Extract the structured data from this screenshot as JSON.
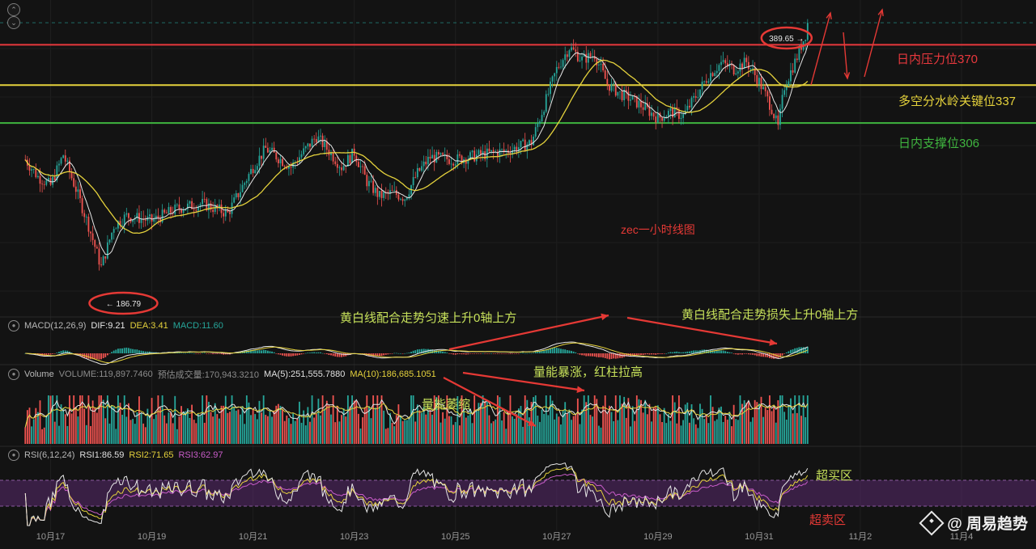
{
  "chart_data": [
    {
      "type": "candlestick",
      "pane": "price",
      "ylim": [
        150,
        400
      ],
      "x_start": "10月16",
      "x_end": "11月4",
      "x_ticks": [
        "10月17",
        "10月19",
        "10月21",
        "10月23",
        "10月25",
        "10月27",
        "10月29",
        "10月31",
        "11月2",
        "11月4"
      ],
      "series": [
        {
          "x": "10月16 12:00",
          "y": 276
        },
        {
          "x": "10月16 18:00",
          "y": 262
        },
        {
          "x": "10月17 00:00",
          "y": 255
        },
        {
          "x": "10月17 06:00",
          "y": 280
        },
        {
          "x": "10月17 12:00",
          "y": 252
        },
        {
          "x": "10月17 18:00",
          "y": 222
        },
        {
          "x": "10月18 00:00",
          "y": 188
        },
        {
          "x": "10月18 06:00",
          "y": 222
        },
        {
          "x": "10月18 12:00",
          "y": 230
        },
        {
          "x": "10月19 00:00",
          "y": 226
        },
        {
          "x": "10月19 12:00",
          "y": 236
        },
        {
          "x": "10月20 00:00",
          "y": 240
        },
        {
          "x": "10月20 12:00",
          "y": 232
        },
        {
          "x": "10月21 00:00",
          "y": 270
        },
        {
          "x": "10月21 06:00",
          "y": 285
        },
        {
          "x": "10月21 18:00",
          "y": 270
        },
        {
          "x": "10月22 06:00",
          "y": 295
        },
        {
          "x": "10月22 12:00",
          "y": 283
        },
        {
          "x": "10月22 18:00",
          "y": 270
        },
        {
          "x": "10月23 00:00",
          "y": 282
        },
        {
          "x": "10月23 06:00",
          "y": 258
        },
        {
          "x": "10月23 12:00",
          "y": 246
        },
        {
          "x": "10月23 18:00",
          "y": 249
        },
        {
          "x": "10月24 00:00",
          "y": 245
        },
        {
          "x": "10月24 06:00",
          "y": 265
        },
        {
          "x": "10月24 12:00",
          "y": 278
        },
        {
          "x": "10月25 00:00",
          "y": 276
        },
        {
          "x": "10月25 12:00",
          "y": 280
        },
        {
          "x": "10月26 00:00",
          "y": 283
        },
        {
          "x": "10月26 12:00",
          "y": 290
        },
        {
          "x": "10月26 18:00",
          "y": 320
        },
        {
          "x": "10月27 00:00",
          "y": 350
        },
        {
          "x": "10月27 06:00",
          "y": 368
        },
        {
          "x": "10月27 12:00",
          "y": 358
        },
        {
          "x": "10月27 18:00",
          "y": 362
        },
        {
          "x": "10月28 00:00",
          "y": 338
        },
        {
          "x": "10月28 06:00",
          "y": 330
        },
        {
          "x": "10月28 12:00",
          "y": 325
        },
        {
          "x": "10月28 18:00",
          "y": 318
        },
        {
          "x": "10月29 00:00",
          "y": 310
        },
        {
          "x": "10月29 06:00",
          "y": 315
        },
        {
          "x": "10月29 12:00",
          "y": 312
        },
        {
          "x": "10月29 18:00",
          "y": 328
        },
        {
          "x": "10月30 00:00",
          "y": 345
        },
        {
          "x": "10月30 06:00",
          "y": 355
        },
        {
          "x": "10月30 12:00",
          "y": 350
        },
        {
          "x": "10月30 18:00",
          "y": 356
        },
        {
          "x": "10月31 00:00",
          "y": 340
        },
        {
          "x": "10月31 06:00",
          "y": 318
        },
        {
          "x": "10月31 09:00",
          "y": 302
        },
        {
          "x": "10月31 12:00",
          "y": 336
        },
        {
          "x": "10月31 18:00",
          "y": 360
        },
        {
          "x": "11月1 00:00",
          "y": 388
        }
      ],
      "levels": [
        {
          "label": "日内压力位370",
          "value": 370,
          "color": "#e8383d"
        },
        {
          "label": "多空分水岭关键位337",
          "value": 337,
          "color": "#e5d23c"
        },
        {
          "label": "日内支撑位306",
          "value": 306,
          "color": "#3fb53f"
        }
      ],
      "price_tags": {
        "high": "389.65 →",
        "low": "← 186.79"
      },
      "caption": "zec一小时线图"
    },
    {
      "type": "bar",
      "pane": "macd",
      "indicator": "MACD(12,26,9)",
      "dif": "DIF:9.21",
      "dea": "DEA:3.41",
      "macd": "MACD:11.60"
    },
    {
      "type": "bar",
      "pane": "volume",
      "indicator": "Volume",
      "volume": "VOLUME:119,897.7460",
      "estimate": "预估成交量:170,943.3210",
      "ma5": "MA(5):251,555.7880",
      "ma10": "MA(10):186,685.1051"
    },
    {
      "type": "line",
      "pane": "rsi",
      "indicator": "RSI(6,12,24)",
      "rsi1": "RSI1:86.59",
      "rsi2": "RSI2:71.65",
      "rsi3": "RSI3:62.97",
      "overbought": 70,
      "oversold": 30
    }
  ],
  "annotations": {
    "macd_left": "黄白线配合走势匀速上升0轴上方",
    "macd_right": "黄白线配合走势损失上升0轴上方",
    "volume_up": "量能暴涨，红柱拉高",
    "volume_shrink": "量能萎缩",
    "overbought_zone": "超买区",
    "oversold_zone": "超卖区"
  },
  "watermark": "@ 周易趋势",
  "colors": {
    "up": "#26a69a",
    "down": "#ef5350",
    "ma_white": "#e6e6e6",
    "ma_yellow": "#e5d23c",
    "annotation_red": "#e53935",
    "annotation_green": "#c6e05a"
  },
  "icons": {
    "nav_up": "chevron-up-icon",
    "nav_down": "chevron-down-icon",
    "indicator_toggle": "eye-icon",
    "brand": "binance-square-icon"
  }
}
